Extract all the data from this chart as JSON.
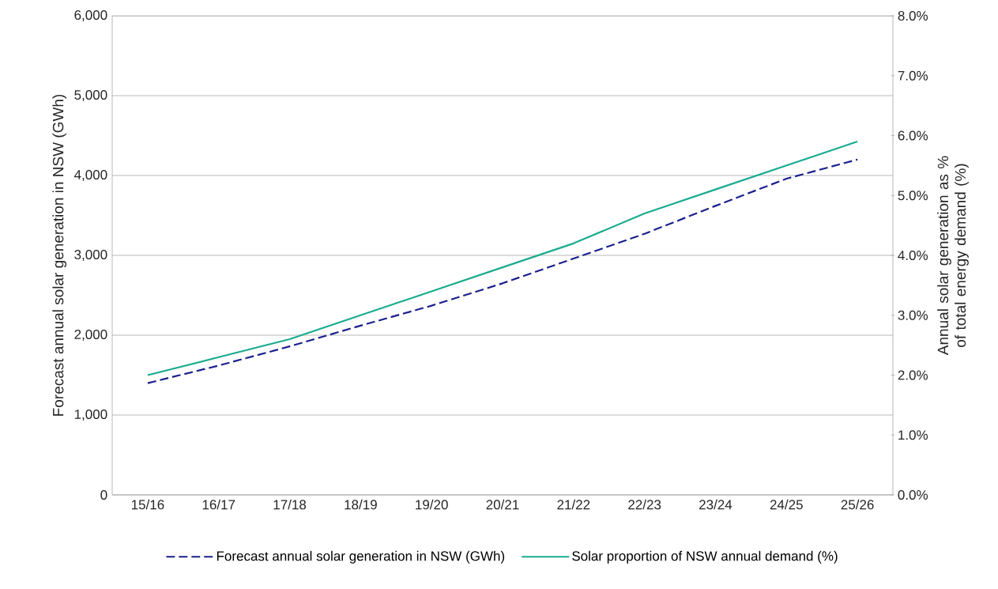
{
  "chart_data": {
    "type": "line",
    "categories": [
      "15/16",
      "16/17",
      "17/18",
      "18/19",
      "19/20",
      "20/21",
      "21/22",
      "22/23",
      "23/24",
      "24/25",
      "25/26"
    ],
    "ylabel": "Forecast annual solar generation in NSW (GWh)",
    "y2label": "Annual  solar generation as % of total energy demand (%)",
    "ylim": [
      0,
      6000
    ],
    "yticks": [
      {
        "value": 0,
        "label": "0"
      },
      {
        "value": 1000,
        "label": "1,000"
      },
      {
        "value": 2000,
        "label": "2,000"
      },
      {
        "value": 3000,
        "label": "3,000"
      },
      {
        "value": 4000,
        "label": "4,000"
      },
      {
        "value": 5000,
        "label": "5,000"
      },
      {
        "value": 6000,
        "label": "6,000"
      }
    ],
    "y2lim": [
      0,
      8
    ],
    "y2ticks": [
      {
        "value": 0,
        "label": "0.0%"
      },
      {
        "value": 1,
        "label": "1.0%"
      },
      {
        "value": 2,
        "label": "2.0%"
      },
      {
        "value": 3,
        "label": "3.0%"
      },
      {
        "value": 4,
        "label": "4.0%"
      },
      {
        "value": 5,
        "label": "5.0%"
      },
      {
        "value": 6,
        "label": "6.0%"
      },
      {
        "value": 7,
        "label": "7.0%"
      },
      {
        "value": 8,
        "label": "8.0%"
      }
    ],
    "grid": "y",
    "legend": "bottom",
    "series": [
      {
        "name": "Forecast annual solar generation in NSW (GWh)",
        "color": "#1a1f8c",
        "line_style": "dashed",
        "values": [
          1400,
          1620,
          1860,
          2120,
          2370,
          2650,
          2960,
          3270,
          3620,
          3960,
          4200
        ]
      },
      {
        "name": "Solar proportion of NSW annual demand (%)",
        "color": "#1aab8f",
        "line_style": "solid",
        "axis": "y2",
        "values": [
          2.0,
          2.3,
          2.6,
          3.0,
          3.4,
          3.8,
          4.2,
          4.7,
          5.1,
          5.5,
          5.9
        ]
      }
    ]
  }
}
